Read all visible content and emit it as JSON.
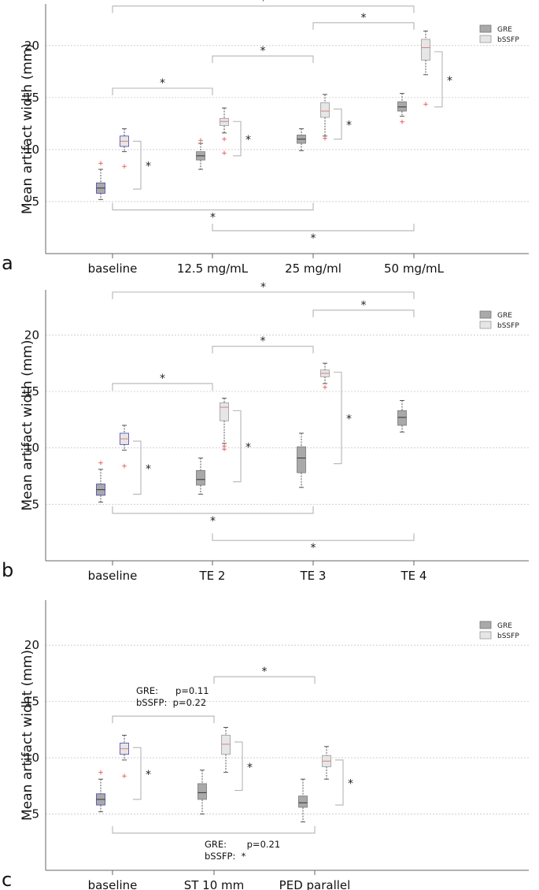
{
  "chart_data": [
    {
      "type": "box",
      "panel_label": "a",
      "ylabel": "Mean artifact width (mm)",
      "yticks": [
        5,
        10,
        15,
        20
      ],
      "ylim": [
        0,
        24
      ],
      "categories": [
        "baseline",
        "12.5 mg/mL",
        "25 mg/ml",
        "50 mg/mL"
      ],
      "legend": [
        "GRE",
        "bSSFP"
      ],
      "series": [
        {
          "name": "GRE",
          "boxes": [
            {
              "cat": 0,
              "min": 5.2,
              "q1": 5.8,
              "median": 6.3,
              "q3": 6.8,
              "max": 8.1,
              "outliers": [
                8.7
              ]
            },
            {
              "cat": 1,
              "min": 8.1,
              "q1": 9.0,
              "median": 9.4,
              "q3": 9.8,
              "max": 10.6,
              "outliers": [
                10.9
              ]
            },
            {
              "cat": 2,
              "min": 9.9,
              "q1": 10.6,
              "median": 11.0,
              "q3": 11.4,
              "max": 12.0,
              "outliers": []
            },
            {
              "cat": 3,
              "min": 13.2,
              "q1": 13.7,
              "median": 14.1,
              "q3": 14.6,
              "max": 15.4,
              "outliers": [
                12.7
              ]
            }
          ]
        },
        {
          "name": "bSSFP",
          "boxes": [
            {
              "cat": 0,
              "min": 9.8,
              "q1": 10.3,
              "median": 10.8,
              "q3": 11.3,
              "max": 12.0,
              "outliers": [
                8.4
              ]
            },
            {
              "cat": 1,
              "min": 11.6,
              "q1": 12.3,
              "median": 12.7,
              "q3": 13.0,
              "max": 14.0,
              "outliers": [
                11.0,
                9.7
              ]
            },
            {
              "cat": 2,
              "min": 11.3,
              "q1": 13.1,
              "median": 13.7,
              "q3": 14.5,
              "max": 15.3,
              "outliers": [
                11.1
              ]
            },
            {
              "cat": 3,
              "min": 17.2,
              "q1": 18.6,
              "median": 19.8,
              "q3": 20.6,
              "max": 21.4,
              "outliers": [
                14.4
              ]
            }
          ]
        }
      ],
      "brackets_top": [
        {
          "from": 0,
          "to": 3,
          "y": 23.8,
          "label": "*"
        },
        {
          "from": 2,
          "to": 3,
          "y": 22.2,
          "label": "*"
        },
        {
          "from": 1,
          "to": 2,
          "y": 19.0,
          "label": "*"
        },
        {
          "from": 0,
          "to": 1,
          "y": 15.9,
          "label": "*"
        }
      ],
      "brackets_bottom": [
        {
          "from": 0,
          "to": 2,
          "y": 4.2,
          "label": "*"
        },
        {
          "from": 1,
          "to": 3,
          "y": 2.2,
          "label": "*"
        }
      ],
      "side_brackets": [
        {
          "cat": 0,
          "y1": 6.2,
          "y2": 10.8,
          "label": "*"
        },
        {
          "cat": 1,
          "y1": 9.4,
          "y2": 12.7,
          "label": "*"
        },
        {
          "cat": 2,
          "y1": 11.0,
          "y2": 13.9,
          "label": "*"
        },
        {
          "cat": 3,
          "y1": 14.1,
          "y2": 19.4,
          "label": "*"
        }
      ],
      "annotations": []
    },
    {
      "type": "box",
      "panel_label": "b",
      "ylabel": "Mean artifact width (mm)",
      "yticks": [
        5,
        10,
        15,
        20
      ],
      "ylim": [
        0,
        24
      ],
      "categories": [
        "baseline",
        "TE 2",
        "TE 3",
        "TE 4"
      ],
      "legend": [
        "GRE",
        "bSSFP"
      ],
      "series": [
        {
          "name": "GRE",
          "boxes": [
            {
              "cat": 0,
              "min": 5.2,
              "q1": 5.8,
              "median": 6.3,
              "q3": 6.8,
              "max": 8.1,
              "outliers": [
                8.7
              ]
            },
            {
              "cat": 1,
              "min": 5.9,
              "q1": 6.7,
              "median": 7.2,
              "q3": 8.0,
              "max": 9.1,
              "outliers": []
            },
            {
              "cat": 2,
              "min": 6.5,
              "q1": 7.8,
              "median": 9.1,
              "q3": 10.1,
              "max": 11.3,
              "outliers": []
            },
            {
              "cat": 3,
              "min": 11.4,
              "q1": 12.0,
              "median": 12.7,
              "q3": 13.3,
              "max": 14.2,
              "outliers": []
            }
          ]
        },
        {
          "name": "bSSFP",
          "boxes": [
            {
              "cat": 0,
              "min": 9.8,
              "q1": 10.3,
              "median": 10.8,
              "q3": 11.3,
              "max": 12.0,
              "outliers": [
                8.4
              ]
            },
            {
              "cat": 1,
              "min": 10.4,
              "q1": 12.4,
              "median": 13.6,
              "q3": 14.0,
              "max": 14.4,
              "outliers": [
                10.2,
                9.9
              ]
            },
            {
              "cat": 2,
              "min": 15.7,
              "q1": 16.3,
              "median": 16.6,
              "q3": 16.9,
              "max": 17.5,
              "outliers": [
                15.4
              ]
            },
            null
          ]
        }
      ],
      "brackets_top": [
        {
          "from": 0,
          "to": 3,
          "y": 23.8,
          "label": "*"
        },
        {
          "from": 2,
          "to": 3,
          "y": 22.2,
          "label": "*"
        },
        {
          "from": 1,
          "to": 2,
          "y": 19.0,
          "label": "*"
        },
        {
          "from": 0,
          "to": 1,
          "y": 15.7,
          "label": "*"
        }
      ],
      "brackets_bottom": [
        {
          "from": 0,
          "to": 2,
          "y": 4.2,
          "label": "*"
        },
        {
          "from": 1,
          "to": 3,
          "y": 1.8,
          "label": "*"
        }
      ],
      "side_brackets": [
        {
          "cat": 0,
          "y1": 5.9,
          "y2": 10.6,
          "label": "*"
        },
        {
          "cat": 1,
          "y1": 7.0,
          "y2": 13.3,
          "label": "*"
        },
        {
          "cat": 2,
          "y1": 8.6,
          "y2": 16.7,
          "label": "*"
        }
      ],
      "annotations": []
    },
    {
      "type": "box",
      "panel_label": "c",
      "ylabel": "Mean artifact widht (mm)",
      "yticks": [
        5,
        10,
        15,
        20
      ],
      "ylim": [
        0,
        24
      ],
      "categories": [
        "baseline",
        "ST 10 mm",
        "PED parallel"
      ],
      "legend": [
        "GRE",
        "bSSFP"
      ],
      "series": [
        {
          "name": "GRE",
          "boxes": [
            {
              "cat": 0,
              "min": 5.2,
              "q1": 5.8,
              "median": 6.3,
              "q3": 6.8,
              "max": 8.1,
              "outliers": [
                8.7
              ]
            },
            {
              "cat": 1,
              "min": 5.0,
              "q1": 6.3,
              "median": 6.9,
              "q3": 7.7,
              "max": 8.9,
              "outliers": []
            },
            {
              "cat": 2,
              "min": 4.3,
              "q1": 5.6,
              "median": 6.0,
              "q3": 6.6,
              "max": 8.1,
              "outliers": []
            }
          ]
        },
        {
          "name": "bSSFP",
          "boxes": [
            {
              "cat": 0,
              "min": 9.8,
              "q1": 10.3,
              "median": 10.8,
              "q3": 11.3,
              "max": 12.0,
              "outliers": [
                8.4
              ]
            },
            {
              "cat": 1,
              "min": 8.7,
              "q1": 10.3,
              "median": 11.2,
              "q3": 12.0,
              "max": 12.7,
              "outliers": []
            },
            {
              "cat": 2,
              "min": 8.1,
              "q1": 9.2,
              "median": 9.7,
              "q3": 10.2,
              "max": 11.0,
              "outliers": []
            }
          ]
        }
      ],
      "brackets_top": [
        {
          "from": 1,
          "to": 2,
          "y": 17.2,
          "label": "*"
        },
        {
          "from": 0,
          "to": 1,
          "y": 13.7,
          "label": ""
        }
      ],
      "brackets_bottom": [
        {
          "from": 0,
          "to": 2,
          "y": 3.3,
          "label": ""
        }
      ],
      "side_brackets": [
        {
          "cat": 0,
          "y1": 6.3,
          "y2": 10.9,
          "label": "*"
        },
        {
          "cat": 1,
          "y1": 7.1,
          "y2": 11.4,
          "label": "*"
        },
        {
          "cat": 2,
          "y1": 5.8,
          "y2": 9.8,
          "label": "*"
        }
      ],
      "annotations": [
        {
          "lines": [
            "GRE:      p=0.11",
            "bSSFP:  p=0.22"
          ],
          "anchor": "above-bracket-1"
        },
        {
          "lines": [
            "GRE:       p=0.21",
            "bSSFP:  *"
          ],
          "anchor": "below-bracket-bottom"
        }
      ]
    }
  ]
}
